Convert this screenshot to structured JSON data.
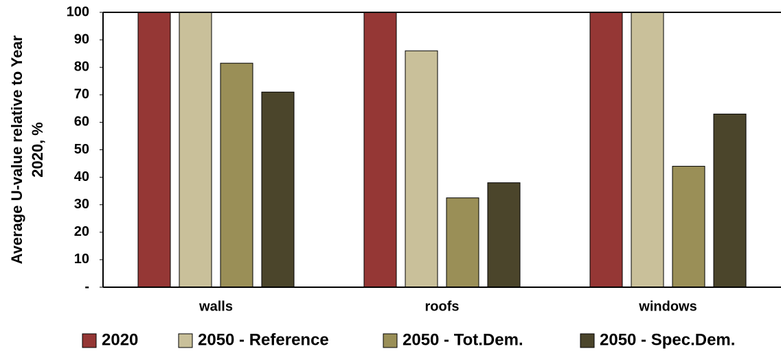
{
  "chart_data": {
    "type": "bar",
    "y_label": [
      "Average U-value relative to Year",
      "2020, %"
    ],
    "categories": [
      "walls",
      "roofs",
      "windows"
    ],
    "series": [
      {
        "name": "2020",
        "color": "#953735",
        "values": [
          100,
          100,
          100
        ]
      },
      {
        "name": "2050 - Reference",
        "color": "#c9c09a",
        "values": [
          100,
          86,
          100
        ]
      },
      {
        "name": "2050 - Tot.Dem.",
        "color": "#9a8f57",
        "values": [
          81.5,
          32.5,
          44
        ]
      },
      {
        "name": "2050 - Spec.Dem.",
        "color": "#4b452b",
        "values": [
          71,
          38,
          63
        ]
      }
    ],
    "ylim": [
      0,
      100
    ],
    "yticks": [
      {
        "value": 0,
        "label": "-"
      },
      10,
      20,
      30,
      40,
      50,
      60,
      70,
      80,
      90,
      100
    ],
    "grid": false,
    "legend": "bottom"
  }
}
